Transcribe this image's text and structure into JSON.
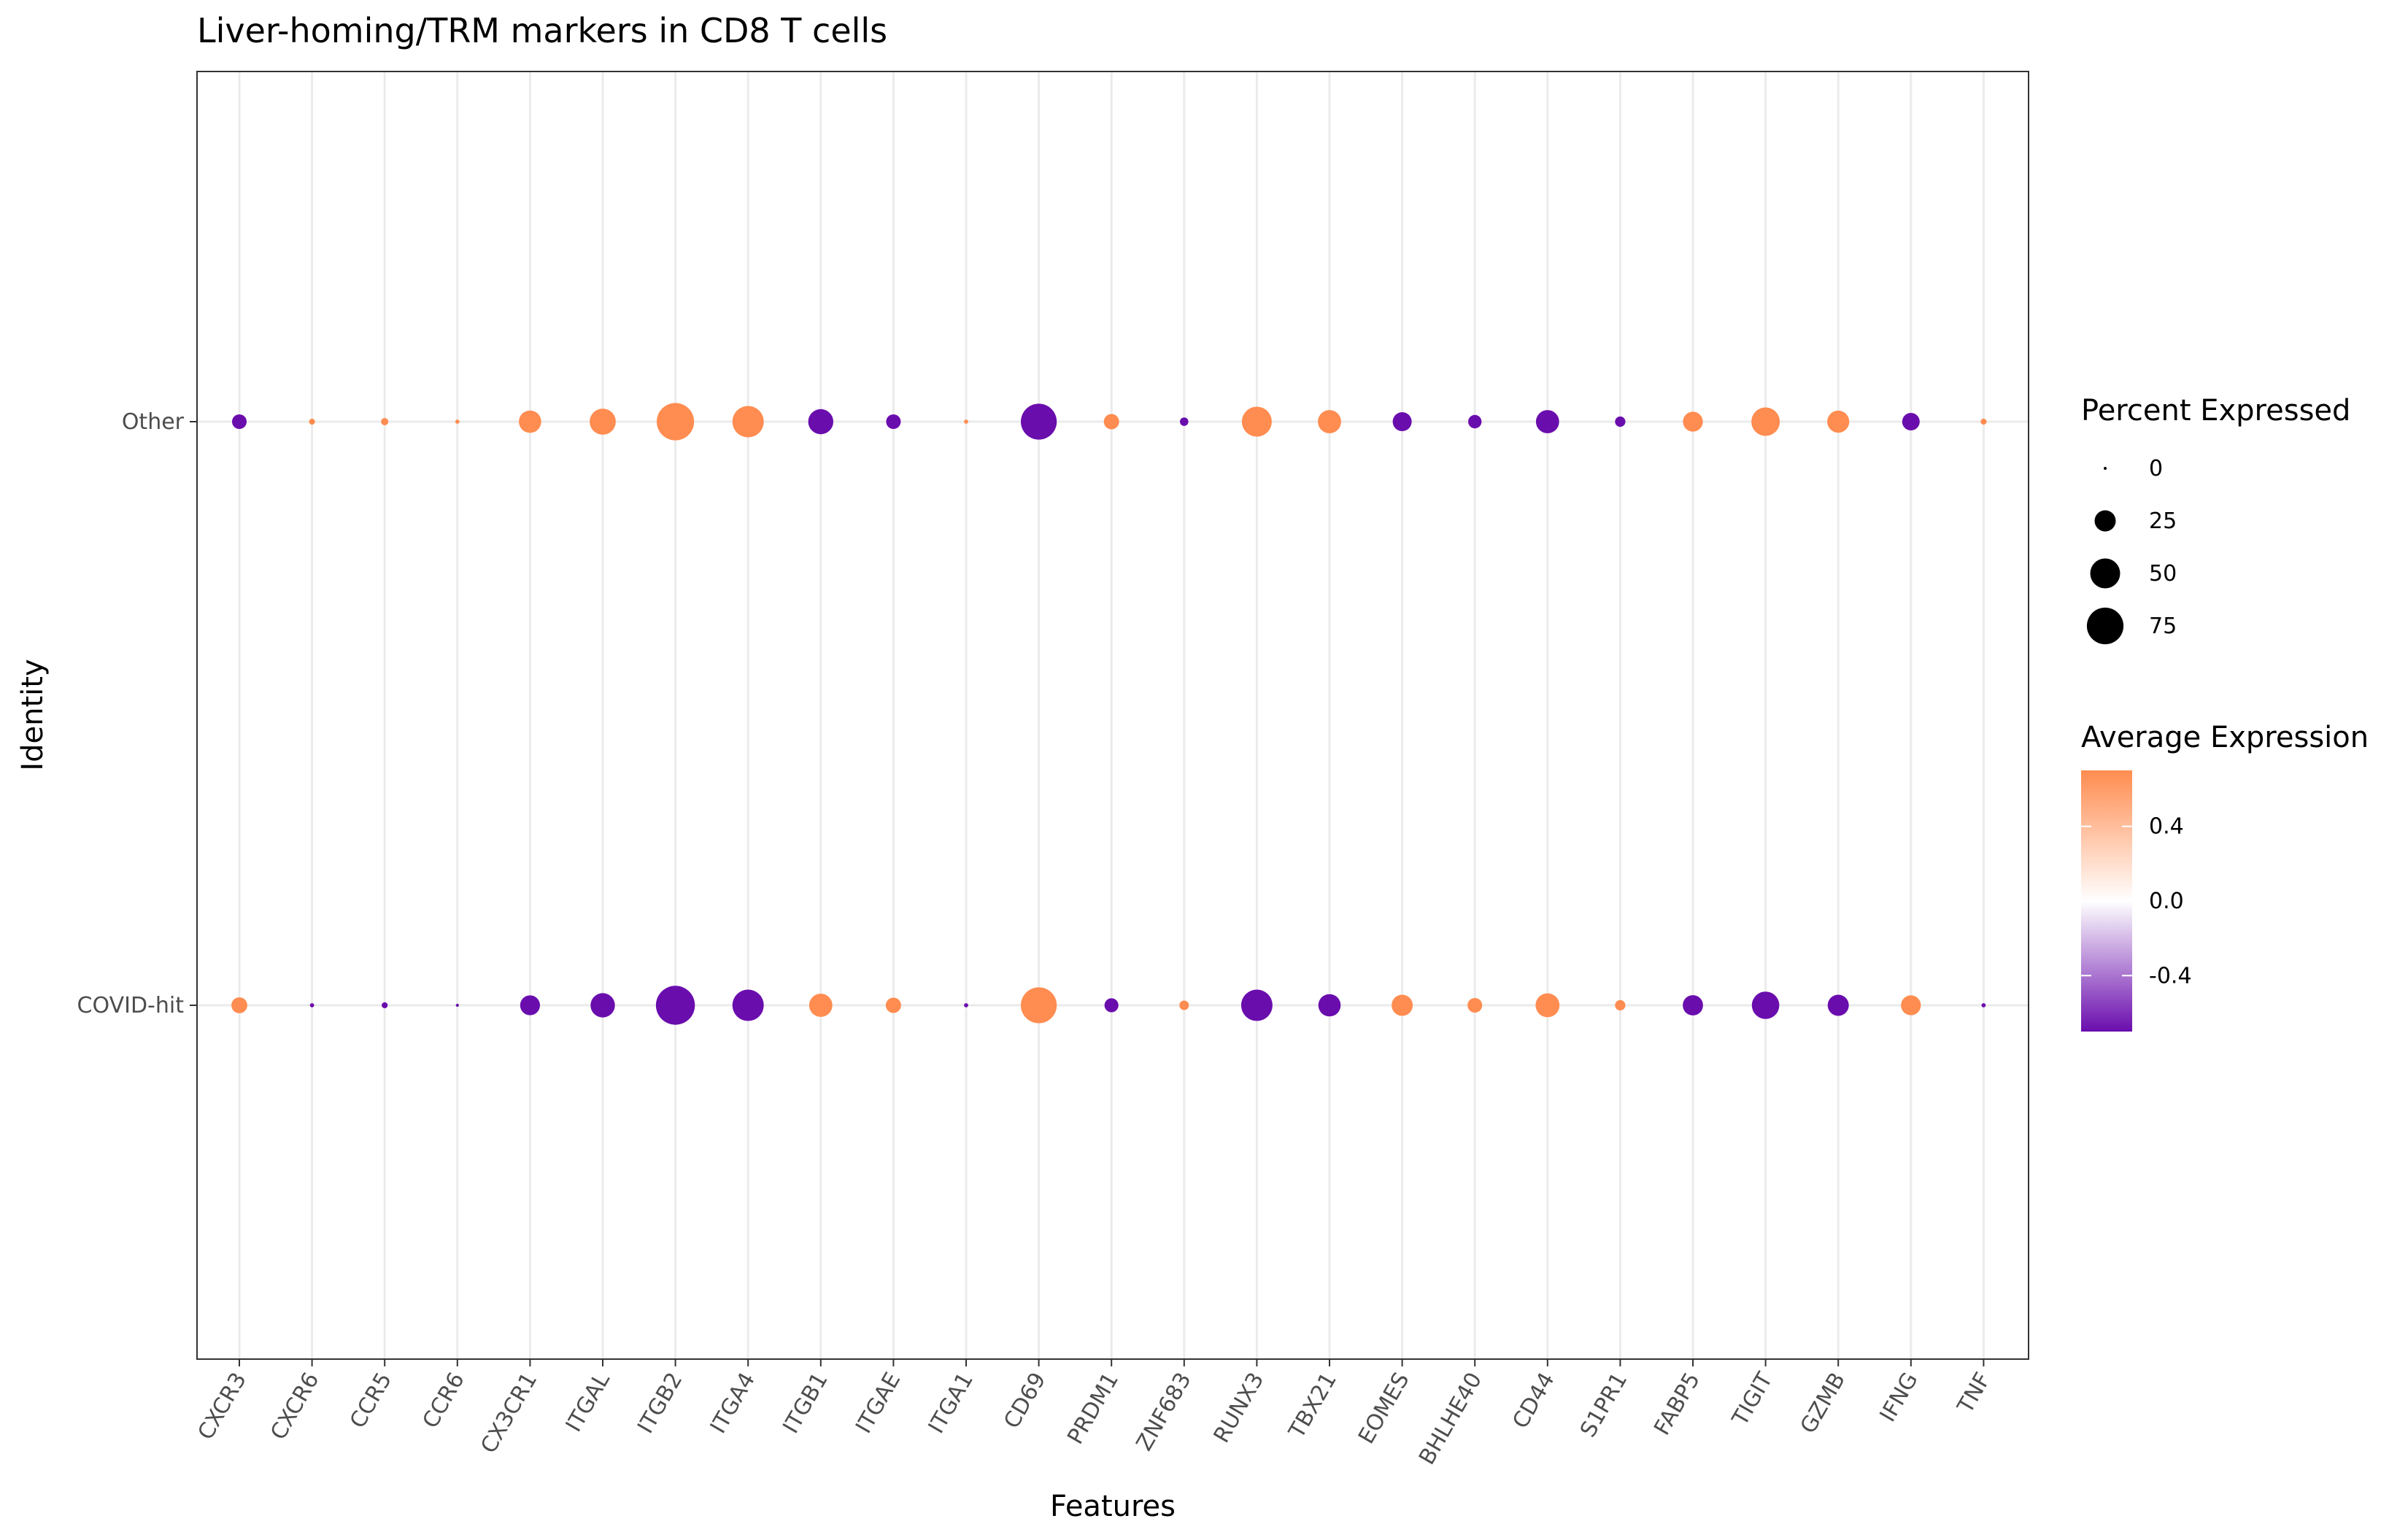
{
  "chart_data": {
    "type": "scatter",
    "title": "Liver-homing/TRM markers in CD8 T cells",
    "xlabel": "Features",
    "ylabel": "Identity",
    "features": [
      "CXCR3",
      "CXCR6",
      "CCR5",
      "CCR6",
      "CX3CR1",
      "ITGAL",
      "ITGB2",
      "ITGA4",
      "ITGB1",
      "ITGAE",
      "ITGA1",
      "CD69",
      "PRDM1",
      "ZNF683",
      "RUNX3",
      "TBX21",
      "EOMES",
      "BHLHE40",
      "CD44",
      "S1PR1",
      "FABP5",
      "TIGIT",
      "GZMB",
      "IFNG",
      "TNF"
    ],
    "identities": [
      "COVID-hit",
      "Other"
    ],
    "series": [
      {
        "name": "Other",
        "percent_expressed": [
          12,
          2,
          3,
          1,
          28,
          38,
          78,
          55,
          35,
          12,
          1,
          72,
          13,
          4,
          50,
          30,
          20,
          10,
          30,
          6,
          22,
          45,
          27,
          17,
          2
        ],
        "average_expression": [
          -0.7,
          0.7,
          0.7,
          0.7,
          0.7,
          0.7,
          0.7,
          0.7,
          -0.7,
          -0.7,
          0.7,
          -0.7,
          0.7,
          -0.7,
          0.7,
          0.7,
          -0.7,
          -0.7,
          -0.7,
          -0.7,
          0.7,
          0.7,
          0.7,
          -0.7,
          0.7
        ]
      },
      {
        "name": "COVID-hit",
        "percent_expressed": [
          14,
          1,
          2,
          0.5,
          22,
          33,
          85,
          55,
          30,
          13,
          1,
          72,
          11,
          5,
          55,
          28,
          25,
          12,
          32,
          6,
          23,
          42,
          25,
          22,
          1
        ],
        "average_expression": [
          0.7,
          -0.7,
          -0.7,
          -0.7,
          -0.7,
          -0.7,
          -0.7,
          -0.7,
          0.7,
          0.7,
          -0.7,
          0.7,
          -0.7,
          0.7,
          -0.7,
          -0.7,
          0.7,
          0.7,
          0.7,
          0.7,
          -0.7,
          -0.7,
          -0.7,
          0.7,
          -0.7
        ]
      }
    ],
    "size_legend": {
      "title": "Percent Expressed",
      "values": [
        0,
        25,
        50,
        75
      ],
      "labels": [
        "0",
        "25",
        "50",
        "75"
      ]
    },
    "color_legend": {
      "title": "Average Expression",
      "ticks": [
        0.4,
        0.0,
        -0.4
      ],
      "labels": [
        "0.4",
        "0.0",
        "-0.4"
      ],
      "range": [
        -0.7,
        0.7
      ],
      "colors": {
        "low": "#6a0dad",
        "mid": "#ffffff",
        "high": "#ff8c50"
      }
    },
    "grid": true,
    "legend_position": "right"
  }
}
